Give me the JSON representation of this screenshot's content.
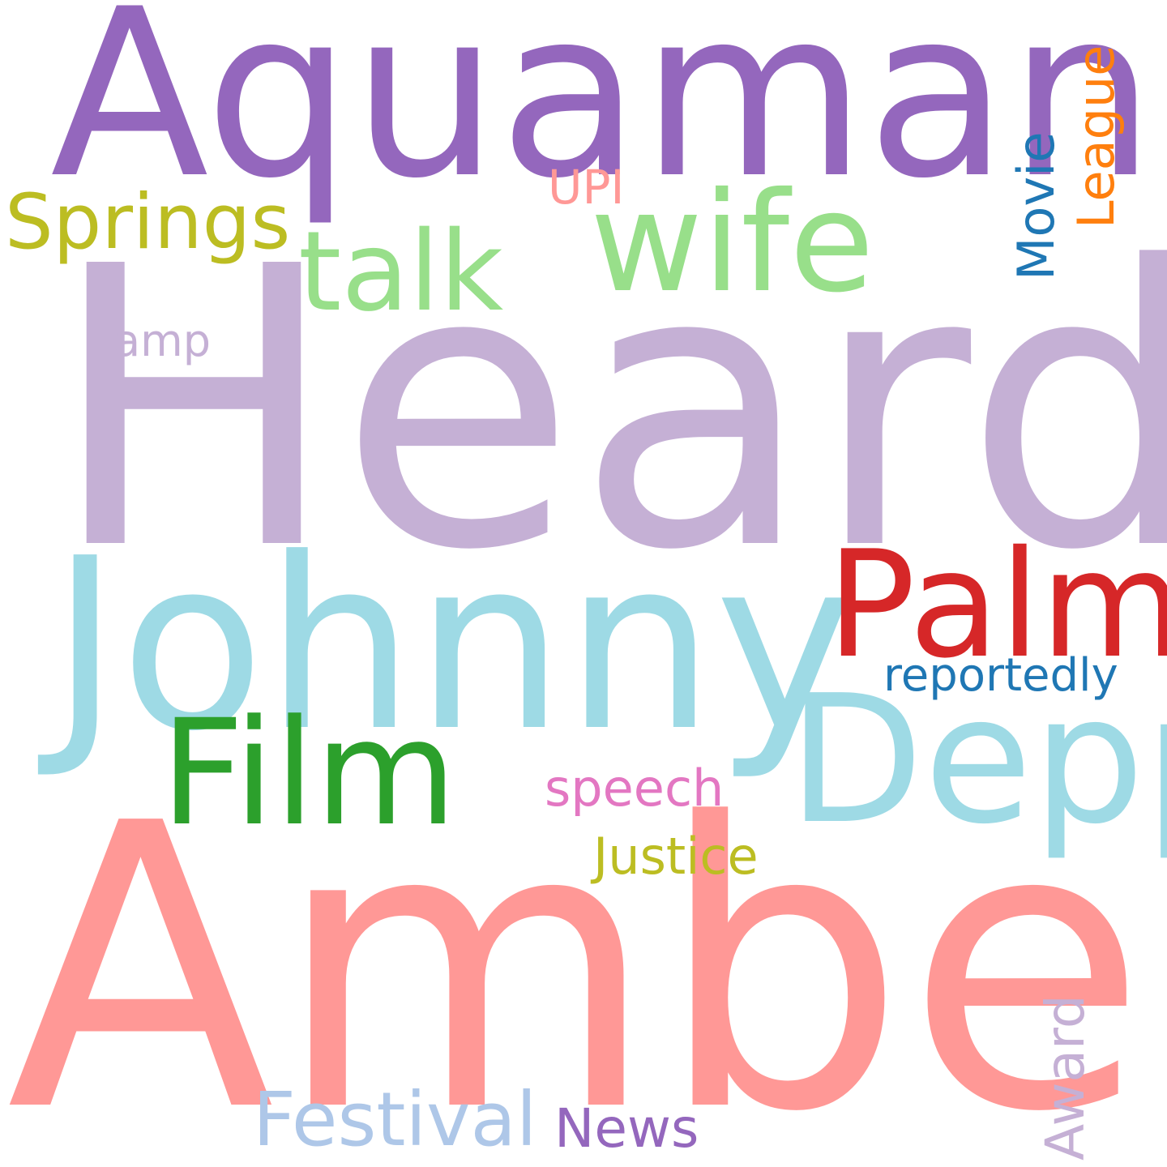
{
  "background": "#ffffff",
  "words": {
    "heard": {
      "text": "Heard",
      "color": "#c5b0d5"
    },
    "amber": {
      "text": "Amber",
      "color": "#ff9896"
    },
    "aquaman": {
      "text": "Aquaman",
      "color": "#9467bd"
    },
    "johnny": {
      "text": "Johnny",
      "color": "#9edae5"
    },
    "depp": {
      "text": "Depp",
      "color": "#9edae5"
    },
    "palm": {
      "text": "Palm",
      "color": "#d62728"
    },
    "film": {
      "text": "Film",
      "color": "#2ca02c"
    },
    "wife": {
      "text": "wife",
      "color": "#98df8a"
    },
    "talk": {
      "text": "talk",
      "color": "#98df8a"
    },
    "springs": {
      "text": "Springs",
      "color": "#bcbd22"
    },
    "justice": {
      "text": "Justice",
      "color": "#bcbd22"
    },
    "speech": {
      "text": "speech",
      "color": "#e377c2"
    },
    "reportedly": {
      "text": "reportedly",
      "color": "#1f77b4"
    },
    "festival": {
      "text": "Festival",
      "color": "#aec7e8"
    },
    "news": {
      "text": "News",
      "color": "#9467bd"
    },
    "award": {
      "text": "Award",
      "color": "#c5b0d5"
    },
    "movie": {
      "text": "Movie",
      "color": "#1f77b4"
    },
    "league": {
      "text": "League",
      "color": "#ff7f0e"
    },
    "upi": {
      "text": "UPI",
      "color": "#ff9896"
    },
    "amp": {
      "text": "amp",
      "color": "#c5b0d5"
    }
  }
}
